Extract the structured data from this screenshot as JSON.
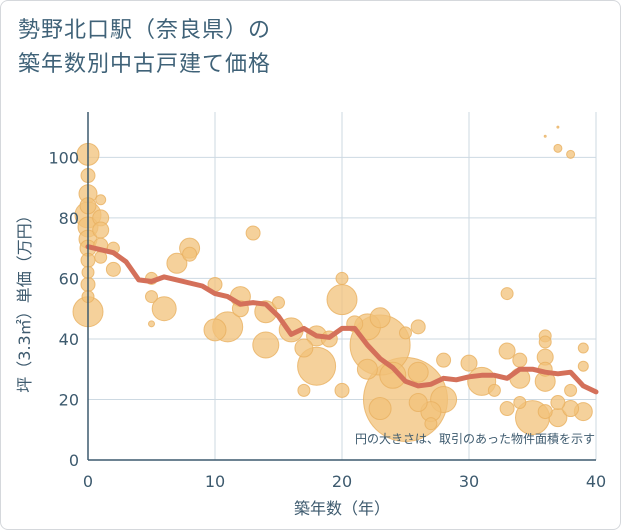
{
  "title_lines": [
    "勢野北口駅（奈良県）の",
    "築年数別中古戸建て価格"
  ],
  "colors": {
    "bubble_fill": "#f1c27a",
    "bubble_stroke": "#e8b060",
    "line": "#d4705a",
    "grid": "#cdd9e2",
    "axis_text": "#3d5a6e"
  },
  "chart_data": {
    "type": "scatter",
    "xlabel": "築年数（年）",
    "ylabel": "坪（3.3㎡）単価（万円）",
    "xlim": [
      0,
      40
    ],
    "ylim": [
      0,
      115
    ],
    "xticks": [
      0,
      10,
      20,
      30,
      40
    ],
    "yticks": [
      0,
      20,
      40,
      60,
      80,
      100
    ],
    "grid": true,
    "annotation": "円の大きさは、取引のあった物件面積を示す",
    "series": [
      {
        "type": "bubble",
        "points": [
          {
            "x": 0,
            "y": 101,
            "r": 11
          },
          {
            "x": 0,
            "y": 94,
            "r": 7
          },
          {
            "x": 0,
            "y": 88,
            "r": 9
          },
          {
            "x": 0,
            "y": 84,
            "r": 8
          },
          {
            "x": 0,
            "y": 81,
            "r": 13
          },
          {
            "x": 0,
            "y": 77,
            "r": 10
          },
          {
            "x": 0,
            "y": 73,
            "r": 9
          },
          {
            "x": 0,
            "y": 70,
            "r": 8
          },
          {
            "x": 0,
            "y": 66,
            "r": 7
          },
          {
            "x": 0,
            "y": 62,
            "r": 6
          },
          {
            "x": 0,
            "y": 58,
            "r": 7
          },
          {
            "x": 0,
            "y": 54,
            "r": 6
          },
          {
            "x": 0,
            "y": 49,
            "r": 15
          },
          {
            "x": 1,
            "y": 86,
            "r": 5
          },
          {
            "x": 1,
            "y": 80,
            "r": 8
          },
          {
            "x": 1,
            "y": 76,
            "r": 8
          },
          {
            "x": 1,
            "y": 71,
            "r": 7
          },
          {
            "x": 1,
            "y": 67,
            "r": 6
          },
          {
            "x": 2,
            "y": 70,
            "r": 6
          },
          {
            "x": 2,
            "y": 63,
            "r": 7
          },
          {
            "x": 5,
            "y": 60,
            "r": 6
          },
          {
            "x": 5,
            "y": 54,
            "r": 6
          },
          {
            "x": 5,
            "y": 45,
            "r": 3
          },
          {
            "x": 6,
            "y": 50,
            "r": 12
          },
          {
            "x": 7,
            "y": 65,
            "r": 10
          },
          {
            "x": 8,
            "y": 70,
            "r": 10
          },
          {
            "x": 8,
            "y": 68,
            "r": 7
          },
          {
            "x": 10,
            "y": 58,
            "r": 7
          },
          {
            "x": 10,
            "y": 43,
            "r": 11
          },
          {
            "x": 11,
            "y": 44,
            "r": 15
          },
          {
            "x": 12,
            "y": 54,
            "r": 10
          },
          {
            "x": 12,
            "y": 50,
            "r": 8
          },
          {
            "x": 13,
            "y": 75,
            "r": 7
          },
          {
            "x": 14,
            "y": 49,
            "r": 11
          },
          {
            "x": 14,
            "y": 38,
            "r": 13
          },
          {
            "x": 15,
            "y": 52,
            "r": 6
          },
          {
            "x": 16,
            "y": 43,
            "r": 12
          },
          {
            "x": 17,
            "y": 37,
            "r": 9
          },
          {
            "x": 17,
            "y": 23,
            "r": 6
          },
          {
            "x": 18,
            "y": 41,
            "r": 10
          },
          {
            "x": 18,
            "y": 31,
            "r": 19
          },
          {
            "x": 19,
            "y": 40,
            "r": 8
          },
          {
            "x": 20,
            "y": 60,
            "r": 6
          },
          {
            "x": 20,
            "y": 53,
            "r": 15
          },
          {
            "x": 20,
            "y": 23,
            "r": 7
          },
          {
            "x": 21,
            "y": 45,
            "r": 8
          },
          {
            "x": 22,
            "y": 44,
            "r": 13
          },
          {
            "x": 22,
            "y": 30,
            "r": 10
          },
          {
            "x": 23,
            "y": 47,
            "r": 10
          },
          {
            "x": 23,
            "y": 38,
            "r": 30
          },
          {
            "x": 23,
            "y": 17,
            "r": 11
          },
          {
            "x": 24,
            "y": 28,
            "r": 13
          },
          {
            "x": 25,
            "y": 42,
            "r": 6
          },
          {
            "x": 25,
            "y": 20,
            "r": 42
          },
          {
            "x": 26,
            "y": 44,
            "r": 7
          },
          {
            "x": 26,
            "y": 29,
            "r": 10
          },
          {
            "x": 26,
            "y": 19,
            "r": 9
          },
          {
            "x": 27,
            "y": 16,
            "r": 10
          },
          {
            "x": 27,
            "y": 12,
            "r": 6
          },
          {
            "x": 28,
            "y": 33,
            "r": 7
          },
          {
            "x": 28,
            "y": 20,
            "r": 13
          },
          {
            "x": 30,
            "y": 32,
            "r": 8
          },
          {
            "x": 31,
            "y": 26,
            "r": 14
          },
          {
            "x": 32,
            "y": 23,
            "r": 6
          },
          {
            "x": 33,
            "y": 55,
            "r": 6
          },
          {
            "x": 33,
            "y": 36,
            "r": 8
          },
          {
            "x": 33,
            "y": 17,
            "r": 7
          },
          {
            "x": 34,
            "y": 33,
            "r": 7
          },
          {
            "x": 34,
            "y": 27,
            "r": 10
          },
          {
            "x": 34,
            "y": 19,
            "r": 6
          },
          {
            "x": 35,
            "y": 14,
            "r": 17
          },
          {
            "x": 36,
            "y": 41,
            "r": 6
          },
          {
            "x": 36,
            "y": 39,
            "r": 6
          },
          {
            "x": 36,
            "y": 34,
            "r": 8
          },
          {
            "x": 36,
            "y": 30,
            "r": 7
          },
          {
            "x": 36,
            "y": 26,
            "r": 10
          },
          {
            "x": 36,
            "y": 16,
            "r": 7
          },
          {
            "x": 36,
            "y": 107,
            "r": 1
          },
          {
            "x": 37,
            "y": 103,
            "r": 4
          },
          {
            "x": 37,
            "y": 110,
            "r": 1
          },
          {
            "x": 37,
            "y": 19,
            "r": 7
          },
          {
            "x": 37,
            "y": 14,
            "r": 9
          },
          {
            "x": 38,
            "y": 101,
            "r": 4
          },
          {
            "x": 38,
            "y": 23,
            "r": 6
          },
          {
            "x": 38,
            "y": 17,
            "r": 8
          },
          {
            "x": 39,
            "y": 37,
            "r": 5
          },
          {
            "x": 39,
            "y": 31,
            "r": 5
          },
          {
            "x": 39,
            "y": 16,
            "r": 9
          }
        ]
      },
      {
        "type": "line",
        "x": [
          0,
          1,
          2,
          3,
          4,
          5,
          6,
          7,
          8,
          9,
          10,
          11,
          12,
          13,
          14,
          15,
          16,
          17,
          18,
          19,
          20,
          21,
          22,
          23,
          24,
          25,
          26,
          27,
          28,
          29,
          30,
          31,
          32,
          33,
          34,
          35,
          36,
          37,
          38,
          39,
          40
        ],
        "y": [
          70.5,
          69.5,
          68.5,
          65.5,
          59.5,
          59,
          60.5,
          59.5,
          58.5,
          57.5,
          55,
          54,
          51.5,
          52,
          51.5,
          47.5,
          41.5,
          43.5,
          41,
          40.5,
          43.5,
          43.5,
          38,
          33.5,
          30.5,
          26,
          24.5,
          25,
          27,
          26.5,
          27.5,
          28,
          28,
          27,
          30,
          30,
          29,
          28.5,
          29,
          24.5,
          22.5
        ]
      }
    ]
  }
}
